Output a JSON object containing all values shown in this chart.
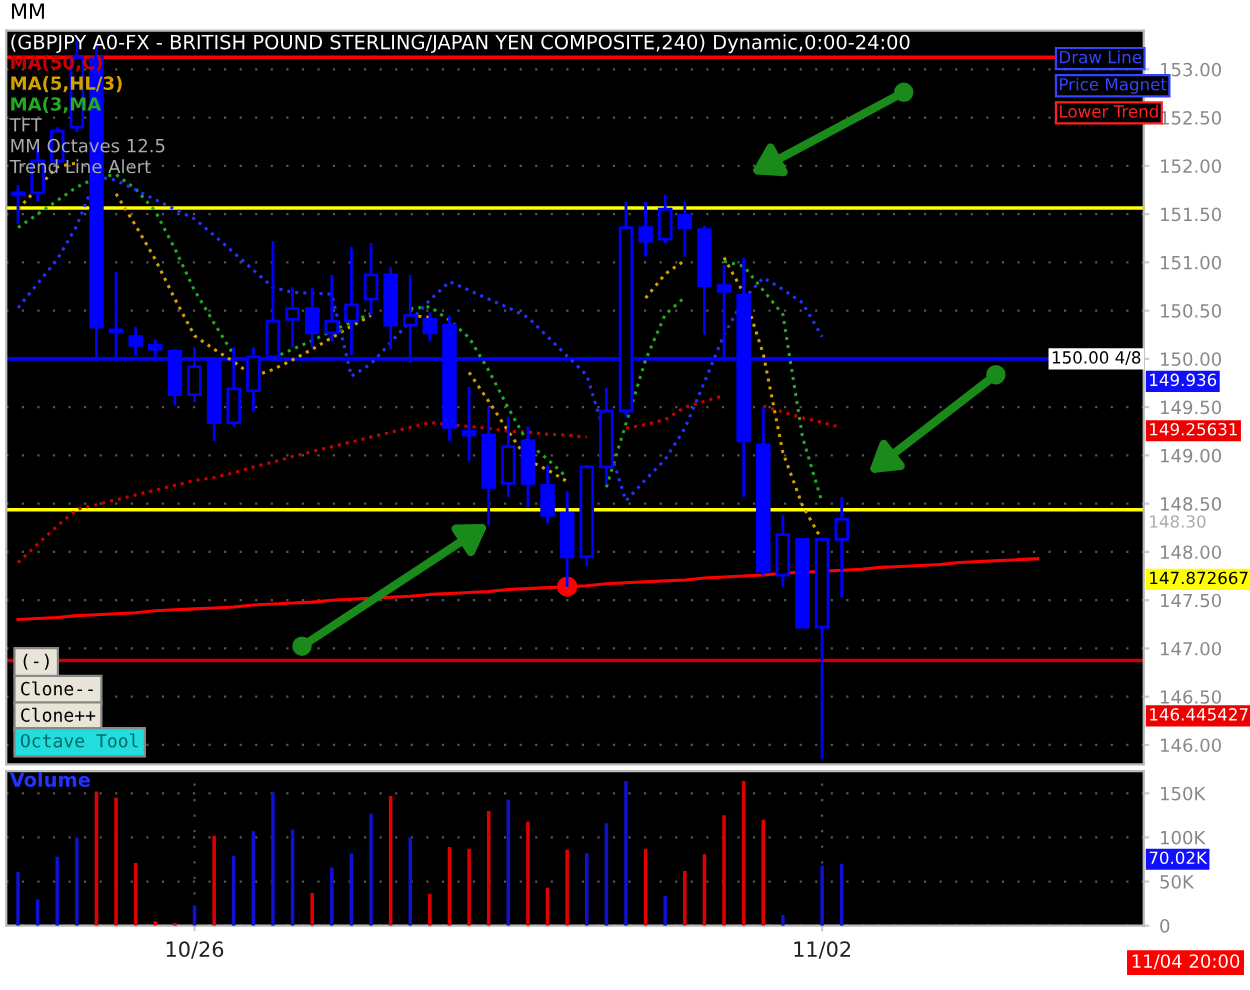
{
  "chart_data": [
    {
      "type": "candlestick",
      "title": "(GBPJPY A0-FX - BRITISH POUND STERLING/JAPAN YEN COMPOSITE,240) Dynamic,0:00-24:00",
      "color": "#0000ff",
      "categories": [
        null,
        null,
        null,
        null,
        null,
        null,
        null,
        null,
        null,
        null,
        null,
        null,
        null,
        null,
        null,
        null,
        null,
        null,
        null,
        null,
        null,
        null,
        null,
        null,
        null,
        null,
        null,
        null,
        null,
        null,
        null,
        null,
        null,
        null,
        null,
        null,
        null,
        null,
        null,
        null,
        null,
        null,
        null,
        null,
        null,
        null,
        null,
        null,
        null,
        null,
        null,
        null,
        null,
        null,
        null,
        null,
        null,
        null
      ],
      "ohlc": [
        [
          151.7,
          151.8,
          151.4,
          151.72
        ],
        [
          151.72,
          152.2,
          151.63,
          152.05
        ],
        [
          152.05,
          152.4,
          152.0,
          152.36
        ],
        [
          152.4,
          153.3,
          152.35,
          153.12
        ],
        [
          153.12,
          153.3,
          149.98,
          150.33
        ],
        [
          150.3,
          150.9,
          149.98,
          150.28
        ],
        [
          150.23,
          150.33,
          150.04,
          150.14
        ],
        [
          150.14,
          150.2,
          149.98,
          150.1
        ],
        [
          150.08,
          150.1,
          149.52,
          149.63
        ],
        [
          149.63,
          150.12,
          149.55,
          149.92
        ],
        [
          149.98,
          150.0,
          149.15,
          149.34
        ],
        [
          149.34,
          150.12,
          149.3,
          149.69
        ],
        [
          149.67,
          150.12,
          149.46,
          150.02
        ],
        [
          150.02,
          151.22,
          149.98,
          150.39
        ],
        [
          150.41,
          150.74,
          150.12,
          150.52
        ],
        [
          150.52,
          150.74,
          150.12,
          150.27
        ],
        [
          150.27,
          150.87,
          150.18,
          150.39
        ],
        [
          150.39,
          151.16,
          150.04,
          150.56
        ],
        [
          150.62,
          151.2,
          150.45,
          150.87
        ],
        [
          150.87,
          150.95,
          150.1,
          150.35
        ],
        [
          150.35,
          150.87,
          149.96,
          150.45
        ],
        [
          150.41,
          150.48,
          150.18,
          150.27
        ],
        [
          150.35,
          150.45,
          149.15,
          149.29
        ],
        [
          149.25,
          149.71,
          148.94,
          149.21
        ],
        [
          149.21,
          149.5,
          148.28,
          148.67
        ],
        [
          148.71,
          149.4,
          148.57,
          149.09
        ],
        [
          149.15,
          149.3,
          148.46,
          148.71
        ],
        [
          148.69,
          148.9,
          148.3,
          148.38
        ],
        [
          148.4,
          148.63,
          147.64,
          147.95
        ],
        [
          147.95,
          148.9,
          147.85,
          148.88
        ],
        [
          148.88,
          149.7,
          148.7,
          149.46
        ],
        [
          149.46,
          151.63,
          149.4,
          151.36
        ],
        [
          151.36,
          151.63,
          151.06,
          151.22
        ],
        [
          151.24,
          151.7,
          151.2,
          151.55
        ],
        [
          151.49,
          151.63,
          151.06,
          151.36
        ],
        [
          151.34,
          151.38,
          150.25,
          150.76
        ],
        [
          150.76,
          150.97,
          149.98,
          150.7
        ],
        [
          150.66,
          151.05,
          148.57,
          149.15
        ],
        [
          149.11,
          149.5,
          147.75,
          147.8
        ],
        [
          147.76,
          148.38,
          147.64,
          148.18
        ],
        [
          148.13,
          148.13,
          147.22,
          147.22
        ],
        [
          147.22,
          148.15,
          145.85,
          148.13
        ],
        [
          148.13,
          148.57,
          147.53,
          148.34
        ],
        null,
        null,
        null,
        null,
        null,
        null,
        null,
        null,
        null,
        null,
        null,
        null,
        null,
        null,
        null
      ],
      "series": [
        {
          "name": "MA(50,C)",
          "color": "#cc0000",
          "type": "line",
          "line_style": "dotted",
          "values": [
            147.89,
            148.08,
            148.27,
            148.44,
            148.49,
            148.54,
            148.59,
            148.64,
            148.69,
            148.74,
            148.77,
            148.82,
            148.88,
            148.93,
            148.99,
            149.04,
            149.09,
            149.14,
            149.19,
            149.24,
            149.29,
            149.34,
            149.32,
            149.3,
            149.28,
            149.25,
            149.24,
            149.22,
            149.21,
            149.19,
            null,
            149.28,
            149.32,
            149.37,
            149.5,
            149.56,
            149.62,
            null,
            149.51,
            149.45,
            149.39,
            149.34,
            149.29,
            null,
            null,
            null,
            null,
            null,
            null,
            null,
            null,
            null,
            null,
            null,
            null,
            null,
            null,
            null
          ]
        },
        {
          "name": "MA(5,HL/3)",
          "color": "#d4a000",
          "type": "line",
          "line_style": "dotted",
          "values": [
            151.55,
            151.77,
            151.99,
            152.03,
            null,
            151.71,
            151.38,
            151.03,
            150.62,
            150.24,
            150.1,
            149.97,
            149.82,
            149.89,
            149.99,
            150.1,
            150.22,
            150.34,
            150.45,
            null,
            150.45,
            150.43,
            null,
            149.86,
            149.56,
            149.25,
            148.95,
            148.85,
            148.73,
            null,
            null,
            null,
            150.63,
            150.88,
            151.02,
            null,
            151.05,
            150.68,
            150.05,
            149.03,
            148.48,
            148.12,
            null,
            null,
            null,
            null,
            null,
            null,
            null,
            null,
            null,
            null,
            null,
            null,
            null,
            null,
            null,
            null
          ]
        },
        {
          "name": "MA(3,MA",
          "color": "#22aa22",
          "type": "line",
          "line_style": "dotted",
          "values": [
            151.36,
            151.5,
            151.64,
            151.78,
            151.88,
            151.91,
            151.76,
            151.53,
            151.14,
            150.71,
            150.37,
            150.04,
            null,
            150.01,
            150.1,
            150.19,
            150.29,
            150.38,
            150.47,
            null,
            150.52,
            150.54,
            150.4,
            150.22,
            149.88,
            149.49,
            149.13,
            148.96,
            148.77,
            null,
            148.67,
            149.33,
            149.99,
            150.46,
            150.64,
            null,
            151.01,
            150.96,
            150.71,
            150.46,
            149.19,
            148.51,
            null,
            null,
            null,
            null,
            null,
            null,
            null,
            null,
            null,
            null,
            null,
            null,
            null,
            null,
            null,
            null
          ]
        },
        {
          "color": "#2233ff",
          "type": "line",
          "line_style": "dotted",
          "values": [
            150.53,
            150.78,
            151.03,
            151.38,
            151.89,
            151.85,
            151.75,
            151.65,
            151.55,
            151.45,
            151.28,
            151.1,
            150.92,
            150.74,
            150.69,
            150.68,
            150.67,
            149.82,
            149.95,
            150.17,
            150.39,
            150.61,
            150.8,
            150.71,
            150.62,
            150.53,
            150.43,
            150.23,
            150.03,
            149.83,
            149.17,
            148.53,
            148.75,
            148.96,
            149.28,
            149.76,
            150.25,
            150.62,
            150.84,
            150.72,
            150.58,
            150.23,
            null,
            null,
            null,
            null,
            null,
            null,
            null,
            null,
            null,
            null,
            null,
            null,
            null,
            null,
            null,
            null
          ]
        },
        {
          "color": "#ff0000",
          "type": "line",
          "line_style": "solid",
          "values": [
            147.3,
            147.31,
            147.32,
            147.34,
            147.35,
            147.36,
            147.37,
            147.39,
            147.4,
            147.41,
            147.42,
            147.43,
            147.45,
            147.46,
            147.47,
            147.48,
            147.5,
            147.51,
            147.52,
            147.53,
            147.54,
            147.56,
            147.57,
            147.58,
            147.59,
            147.61,
            147.62,
            147.63,
            147.64,
            147.65,
            147.67,
            147.68,
            147.69,
            147.7,
            147.71,
            147.73,
            147.74,
            147.75,
            147.76,
            147.78,
            147.79,
            147.8,
            147.81,
            147.82,
            147.84,
            147.85,
            147.86,
            147.87,
            147.89,
            147.9,
            147.91,
            147.92,
            147.93,
            null,
            null,
            null,
            null,
            null
          ]
        },
        {
          "color": "#ff0000",
          "type": "scatter",
          "marker": "circle",
          "values": [
            null,
            null,
            null,
            null,
            null,
            null,
            null,
            null,
            null,
            null,
            null,
            null,
            null,
            null,
            null,
            null,
            null,
            null,
            null,
            null,
            null,
            null,
            null,
            null,
            null,
            null,
            null,
            null,
            147.64,
            null,
            null,
            null,
            null,
            null,
            null,
            null,
            null,
            null,
            null,
            null,
            null,
            null,
            null,
            null,
            null,
            null,
            null,
            null,
            null,
            null,
            null,
            null,
            null,
            null,
            null,
            null,
            null,
            null
          ]
        }
      ],
      "ref_lines": [
        {
          "axis": "y",
          "value": 153.125,
          "color": "#ff0000"
        },
        {
          "axis": "y",
          "value": 151.5625,
          "color": "#ffff00"
        },
        {
          "axis": "y",
          "value": 150,
          "color": "#0000ff"
        },
        {
          "axis": "y",
          "value": 148.4375,
          "color": "#ffff00"
        },
        {
          "axis": "y",
          "value": 146.875,
          "color": "#cc0000"
        }
      ],
      "ylim": [
        145.8,
        153.4
      ],
      "yticks": [
        {
          "value": 146,
          "label": "146.00"
        },
        {
          "value": 146.5,
          "label": "146.50"
        },
        {
          "value": 147,
          "label": "147.00"
        },
        {
          "value": 147.5,
          "label": "147.50"
        },
        {
          "value": 148,
          "label": "148.00"
        },
        {
          "value": 148.5,
          "label": "148.50"
        },
        {
          "value": 149,
          "label": "149.00"
        },
        {
          "value": 149.5,
          "label": "149.50"
        },
        {
          "value": 150,
          "label": "150.00"
        },
        {
          "value": 150.5,
          "label": "150.50"
        },
        {
          "value": 151,
          "label": "151.00"
        },
        {
          "value": 151.5,
          "label": "151.50"
        },
        {
          "value": 152,
          "label": "152.00"
        },
        {
          "value": 152.5,
          "label": "152.50"
        },
        {
          "value": 153,
          "label": "153.00"
        }
      ],
      "tick_labels": "y",
      "grid": "y",
      "legend": "top left",
      "annotations": [
        "MM",
        "TFT",
        "MM Octaves 12.5",
        "Trend Line Alert",
        "Draw Line",
        "Price Magnet",
        "Lower Trend",
        "(-)",
        "Clone--",
        "Clone++",
        "Octave Tool",
        {
          "text": "150.00 4/8",
          "y": 150
        },
        "149.936",
        "149.25631",
        "148.30",
        "147.872667",
        "146.445427"
      ]
    },
    {
      "type": "bar",
      "title": "Volume",
      "categories": [
        null,
        null,
        null,
        null,
        null,
        null,
        null,
        null,
        null,
        "10/26",
        null,
        null,
        null,
        null,
        null,
        null,
        null,
        null,
        null,
        null,
        null,
        null,
        null,
        null,
        null,
        null,
        null,
        null,
        null,
        null,
        null,
        null,
        null,
        null,
        null,
        null,
        null,
        null,
        null,
        null,
        null,
        "11/02",
        null,
        null,
        null,
        null,
        null,
        null,
        null,
        null,
        null,
        null,
        null,
        null,
        null,
        null,
        null,
        null
      ],
      "values": [
        61,
        30,
        78,
        100,
        152,
        145,
        71,
        5,
        3,
        23,
        102,
        79,
        107,
        151,
        109,
        37,
        66,
        82,
        127,
        147,
        100,
        36,
        89,
        87,
        130,
        143,
        118,
        43,
        86,
        82,
        116,
        164,
        87,
        34,
        62,
        81,
        125,
        164,
        120,
        12,
        null,
        68,
        70,
        null,
        null,
        null,
        null,
        null,
        null,
        null,
        null,
        null,
        null,
        null,
        null,
        null,
        null,
        null
      ],
      "colors": [
        "#1010d0",
        "#1010d0",
        "#1010d0",
        "#1010d0",
        "#e00000",
        "#e00000",
        "#e00000",
        "#e00000",
        "#e00000",
        "#1010d0",
        "#e00000",
        "#1010d0",
        "#1010d0",
        "#1010d0",
        "#1010d0",
        "#e00000",
        "#1010d0",
        "#1010d0",
        "#1010d0",
        "#e00000",
        "#1010d0",
        "#e00000",
        "#e00000",
        "#e00000",
        "#e00000",
        "#1010d0",
        "#e00000",
        "#e00000",
        "#e00000",
        "#1010d0",
        "#1010d0",
        "#1010d0",
        "#e00000",
        "#1010d0",
        "#e00000",
        "#e00000",
        "#e00000",
        "#e00000",
        "#e00000",
        "#1010d0",
        "#1010d0",
        "#1010d0",
        "#1010d0",
        "#1010d0",
        "#1010d0",
        "#1010d0",
        "#1010d0",
        "#1010d0",
        "#1010d0",
        "#1010d0",
        "#1010d0",
        "#1010d0",
        "#1010d0",
        "#1010d0",
        "#1010d0",
        "#1010d0",
        "#1010d0",
        "#1010d0"
      ],
      "ylim": [
        0,
        175
      ],
      "yticks": [
        0,
        {
          "value": 50,
          "label": "50K"
        },
        {
          "value": 100,
          "label": "100K"
        },
        {
          "value": 150,
          "label": "150K"
        }
      ],
      "grid": true,
      "annotations": [
        "70.02K",
        "11/04 20:00"
      ]
    }
  ]
}
